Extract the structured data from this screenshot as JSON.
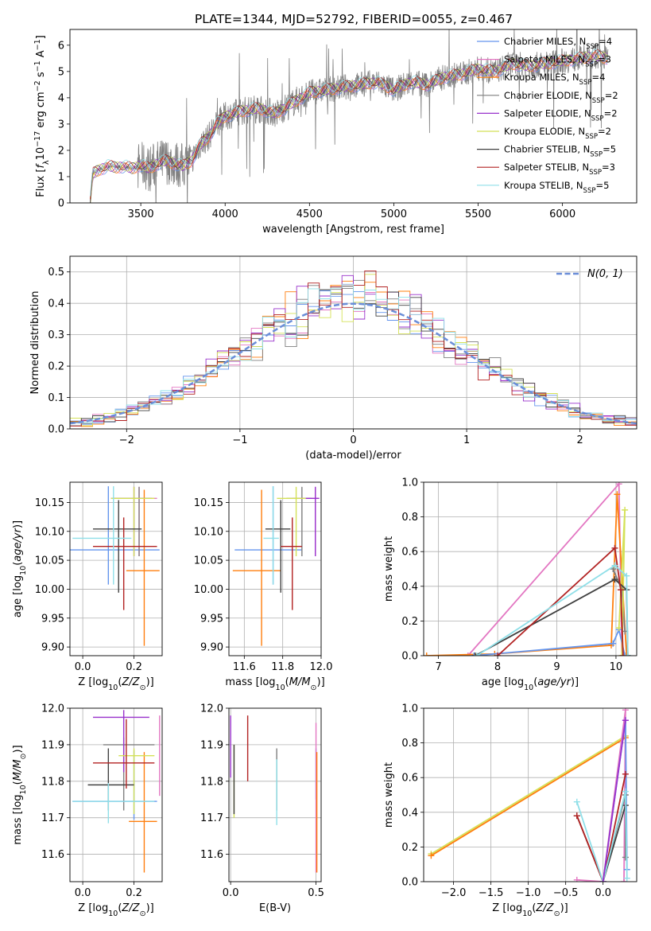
{
  "figure": {
    "title": "PLATE=1344, MJD=52792, FIBERID=0055, z=0.467"
  },
  "legend_labels": [
    {
      "text": "Chabrier MILES, N",
      "sub": "SSP",
      "tail": "=4",
      "color": "#6495ed"
    },
    {
      "text": "Salpeter MILES, N",
      "sub": "SSP",
      "tail": "=3",
      "color": "#e377c2"
    },
    {
      "text": "Kroupa MILES, N",
      "sub": "SSP",
      "tail": "=4",
      "color": "#ff7f0e"
    },
    {
      "text": "Chabrier ELODIE, N",
      "sub": "SSP",
      "tail": "=2",
      "color": "#7f7f7f"
    },
    {
      "text": "Salpeter ELODIE, N",
      "sub": "SSP",
      "tail": "=2",
      "color": "#9932cc"
    },
    {
      "text": "Kroupa ELODIE, N",
      "sub": "SSP",
      "tail": "=2",
      "color": "#d4e157"
    },
    {
      "text": "Chabrier STELIB, N",
      "sub": "SSP",
      "tail": "=5",
      "color": "#404040"
    },
    {
      "text": "Salpeter STELIB, N",
      "sub": "SSP",
      "tail": "=3",
      "color": "#b22222"
    },
    {
      "text": "Kroupa STELIB, N",
      "sub": "SSP",
      "tail": "=5",
      "color": "#8fdfe8"
    }
  ],
  "chart_data": [
    {
      "id": "spectrum",
      "type": "line",
      "xlabel": "wavelength [Angstrom, rest frame]",
      "ylabel": "Flux [fλ10⁻¹⁷ erg cm⁻² s⁻¹ A⁻¹]",
      "xlim": [
        3080,
        6440
      ],
      "ylim": [
        0,
        6.6
      ],
      "xticks": [
        3500,
        4000,
        4500,
        5000,
        5500,
        6000
      ],
      "yticks": [
        0,
        1,
        2,
        3,
        4,
        5,
        6
      ],
      "grid": false,
      "legend": "top-right",
      "data_color": "#808080",
      "model_color": "#ff7f0e",
      "continuum_points": [
        [
          3200,
          0
        ],
        [
          3215,
          1.1
        ],
        [
          3250,
          1.25
        ],
        [
          3300,
          1.4
        ],
        [
          3350,
          1.35
        ],
        [
          3400,
          1.4
        ],
        [
          3450,
          1.3
        ],
        [
          3500,
          1.45
        ],
        [
          3550,
          1.3
        ],
        [
          3600,
          1.5
        ],
        [
          3650,
          1.6
        ],
        [
          3700,
          1.5
        ],
        [
          3750,
          1.4
        ],
        [
          3800,
          1.6
        ],
        [
          3850,
          2.2
        ],
        [
          3900,
          2.5
        ],
        [
          3950,
          3.0
        ],
        [
          4000,
          3.3
        ],
        [
          4100,
          3.5
        ],
        [
          4200,
          3.6
        ],
        [
          4300,
          3.4
        ],
        [
          4400,
          3.8
        ],
        [
          4500,
          4.2
        ],
        [
          4600,
          4.3
        ],
        [
          4700,
          4.4
        ],
        [
          4800,
          4.5
        ],
        [
          4900,
          4.6
        ],
        [
          5000,
          4.3
        ],
        [
          5100,
          4.6
        ],
        [
          5200,
          4.5
        ],
        [
          5300,
          4.8
        ],
        [
          5400,
          4.9
        ],
        [
          5500,
          5.1
        ],
        [
          5600,
          5.0
        ],
        [
          5700,
          5.3
        ],
        [
          5800,
          5.2
        ],
        [
          5900,
          5.3
        ],
        [
          6000,
          5.4
        ],
        [
          6100,
          5.5
        ],
        [
          6200,
          5.6
        ],
        [
          6270,
          5.5
        ]
      ]
    },
    {
      "id": "residuals",
      "type": "line",
      "xlabel": "(data-model)/error",
      "ylabel": "Normed distribution",
      "xlim": [
        -2.5,
        2.5
      ],
      "ylim": [
        0,
        0.55
      ],
      "xticks": [
        -2,
        -1,
        0,
        1,
        2
      ],
      "yticks": [
        0.0,
        0.1,
        0.2,
        0.3,
        0.4,
        0.5
      ],
      "grid": true,
      "legend": "top-right",
      "gaussian_label": "N(0, 1)",
      "gaussian_color": "#6a8ed8"
    },
    {
      "id": "age-vs-Z",
      "type": "scatter",
      "xlabel": "Z [log10(Z/Z⊙)]",
      "ylabel": "age  [log10(age/yr)]",
      "xlim": [
        -0.05,
        0.31
      ],
      "ylim": [
        9.885,
        10.185
      ],
      "xticks": [
        0.0,
        0.2
      ],
      "yticks": [
        9.9,
        9.95,
        10.0,
        10.05,
        10.1,
        10.15
      ],
      "points": [
        {
          "x": 0.1,
          "y": 10.068,
          "xerr": [
            0.165,
            0.2
          ],
          "yerr": [
            0.06,
            0.11
          ],
          "color": "#6495ed"
        },
        {
          "x": 0.22,
          "y": 10.157,
          "xerr": [
            0.07,
            0.07
          ],
          "yerr": [
            0.1,
            0.02
          ],
          "color": "#e377c2"
        },
        {
          "x": 0.24,
          "y": 10.032,
          "xerr": [
            0.07,
            0.06
          ],
          "yerr": [
            0.13,
            0.14
          ],
          "color": "#ff7f0e"
        },
        {
          "x": 0.22,
          "y": 10.157,
          "xerr": [
            0.1,
            0.05
          ],
          "yerr": [
            0.1,
            0.02
          ],
          "color": "#7f7f7f"
        },
        {
          "x": 0.2,
          "y": 10.157,
          "xerr": [
            0.09,
            0.07
          ],
          "yerr": [
            0.1,
            0.02
          ],
          "color": "#9932cc"
        },
        {
          "x": 0.2,
          "y": 10.157,
          "xerr": [
            0.09,
            0.08
          ],
          "yerr": [
            0.1,
            0.02
          ],
          "color": "#d4e157"
        },
        {
          "x": 0.14,
          "y": 10.104,
          "xerr": [
            0.1,
            0.09
          ],
          "yerr": [
            0.11,
            0.05
          ],
          "color": "#404040"
        },
        {
          "x": 0.16,
          "y": 10.074,
          "xerr": [
            0.12,
            0.13
          ],
          "yerr": [
            0.11,
            0.05
          ],
          "color": "#b22222"
        },
        {
          "x": 0.12,
          "y": 10.088,
          "xerr": [
            0.16,
            0.07
          ],
          "yerr": [
            0.08,
            0.09
          ],
          "color": "#8fdfe8"
        }
      ]
    },
    {
      "id": "age-vs-mass",
      "type": "scatter",
      "xlabel": "mass [log10(M/M⊙)]",
      "ylabel": "",
      "xlim": [
        11.52,
        12.0
      ],
      "ylim": [
        9.885,
        10.185
      ],
      "xticks": [
        11.6,
        11.8,
        12.0
      ],
      "yticks": [
        9.9,
        9.95,
        10.0,
        10.05,
        10.1,
        10.15
      ],
      "points": [
        {
          "x": 11.75,
          "y": 10.068,
          "xerr": [
            0.2,
            0.15
          ],
          "yerr": [
            0.06,
            0.11
          ],
          "color": "#6495ed"
        },
        {
          "x": 11.97,
          "y": 10.157,
          "xerr": [
            0.05,
            0.02
          ],
          "yerr": [
            0.1,
            0.02
          ],
          "color": "#e377c2"
        },
        {
          "x": 11.69,
          "y": 10.032,
          "xerr": [
            0.15,
            0.1
          ],
          "yerr": [
            0.13,
            0.14
          ],
          "color": "#ff7f0e"
        },
        {
          "x": 11.9,
          "y": 10.157,
          "xerr": [
            0.08,
            0.05
          ],
          "yerr": [
            0.1,
            0.02
          ],
          "color": "#7f7f7f"
        },
        {
          "x": 11.97,
          "y": 10.157,
          "xerr": [
            0.12,
            0.02
          ],
          "yerr": [
            0.1,
            0.02
          ],
          "color": "#9932cc"
        },
        {
          "x": 11.87,
          "y": 10.157,
          "xerr": [
            0.1,
            0.05
          ],
          "yerr": [
            0.1,
            0.02
          ],
          "color": "#d4e157"
        },
        {
          "x": 11.79,
          "y": 10.104,
          "xerr": [
            0.08,
            0.05
          ],
          "yerr": [
            0.11,
            0.05
          ],
          "color": "#404040"
        },
        {
          "x": 11.85,
          "y": 10.074,
          "xerr": [
            0.06,
            0.05
          ],
          "yerr": [
            0.11,
            0.05
          ],
          "color": "#b22222"
        },
        {
          "x": 11.75,
          "y": 10.088,
          "xerr": [
            0.05,
            0.03
          ],
          "yerr": [
            0.08,
            0.09
          ],
          "color": "#8fdfe8"
        }
      ]
    },
    {
      "id": "mass-weight-vs-age",
      "type": "line",
      "xlabel": "age  [log10(age/yr)]",
      "ylabel": "mass weight",
      "xlim": [
        6.75,
        10.35
      ],
      "ylim": [
        0,
        1
      ],
      "xticks": [
        7,
        8,
        9,
        10
      ],
      "yticks": [
        0.0,
        0.2,
        0.4,
        0.6,
        0.8,
        1.0
      ],
      "grid": true,
      "series": [
        {
          "color": "#e377c2",
          "x": [
            7.5,
            10.05,
            10.1
          ],
          "y": [
            0.0,
            0.99,
            0.0
          ]
        },
        {
          "color": "#ff7f0e",
          "x": [
            6.8,
            7.95,
            9.92,
            10.02,
            10.18
          ],
          "y": [
            0.0,
            0.01,
            0.06,
            0.93,
            0.0
          ]
        },
        {
          "color": "#6495ed",
          "x": [
            7.6,
            9.95,
            10.05,
            10.15
          ],
          "y": [
            0.0,
            0.07,
            0.15,
            0.0
          ]
        },
        {
          "color": "#7f7f7f",
          "x": [
            9.95,
            10.1,
            10.15
          ],
          "y": [
            0.5,
            0.38,
            0.14
          ]
        },
        {
          "color": "#d4e157",
          "x": [
            10.05,
            10.15,
            10.1
          ],
          "y": [
            0.16,
            0.84,
            0.0
          ]
        },
        {
          "color": "#404040",
          "x": [
            7.62,
            9.98,
            10.18,
            10.2
          ],
          "y": [
            0.0,
            0.44,
            0.38,
            0.0
          ]
        },
        {
          "color": "#b22222",
          "x": [
            8.0,
            9.98,
            10.08,
            10.12
          ],
          "y": [
            0.0,
            0.62,
            0.38,
            0.0
          ]
        },
        {
          "color": "#8fdfe8",
          "x": [
            7.65,
            9.98,
            10.18,
            10.2
          ],
          "y": [
            0.0,
            0.52,
            0.46,
            0.0
          ]
        }
      ]
    },
    {
      "id": "mass-vs-Z",
      "type": "scatter",
      "xlabel": "Z [log10(Z/Z⊙)]",
      "ylabel": "mass [log10(M/M⊙)]",
      "xlim": [
        -0.05,
        0.31
      ],
      "ylim": [
        11.525,
        12.0
      ],
      "xticks": [
        0.0,
        0.2
      ],
      "yticks": [
        11.6,
        11.7,
        11.8,
        11.9,
        12.0
      ],
      "points": [
        {
          "x": 0.2,
          "y": 11.745,
          "xerr": [
            0.24,
            0.09
          ],
          "yerr": [
            0.05,
            0.14
          ],
          "color": "#6495ed"
        },
        {
          "x": 0.3,
          "y": 11.96,
          "xerr": [
            0.0,
            0.0
          ],
          "yerr": [
            0.2,
            0.02
          ],
          "color": "#e377c2"
        },
        {
          "x": 0.24,
          "y": 11.69,
          "xerr": [
            0.06,
            0.05
          ],
          "yerr": [
            0.14,
            0.19
          ],
          "color": "#ff7f0e"
        },
        {
          "x": 0.16,
          "y": 11.9,
          "xerr": [
            0.08,
            0.12
          ],
          "yerr": [
            0.18,
            0.02
          ],
          "color": "#7f7f7f"
        },
        {
          "x": 0.16,
          "y": 11.975,
          "xerr": [
            0.12,
            0.1
          ],
          "yerr": [
            0.15,
            0.02
          ],
          "color": "#9932cc"
        },
        {
          "x": 0.2,
          "y": 11.87,
          "xerr": [
            0.06,
            0.08
          ],
          "yerr": [
            0.16,
            0.02
          ],
          "color": "#d4e157"
        },
        {
          "x": 0.1,
          "y": 11.79,
          "xerr": [
            0.08,
            0.1
          ],
          "yerr": [
            0.07,
            0.1
          ],
          "color": "#404040"
        },
        {
          "x": 0.17,
          "y": 11.85,
          "xerr": [
            0.13,
            0.11
          ],
          "yerr": [
            0.07,
            0.12
          ],
          "color": "#b22222"
        },
        {
          "x": 0.1,
          "y": 11.745,
          "xerr": [
            0.14,
            0.18
          ],
          "yerr": [
            0.06,
            0.05
          ],
          "color": "#8fdfe8"
        }
      ]
    },
    {
      "id": "mass-vs-EBV",
      "type": "scatter",
      "xlabel": "E(B-V)",
      "ylabel": "",
      "xlim": [
        -0.01,
        0.53
      ],
      "ylim": [
        11.525,
        12.0
      ],
      "xticks": [
        0.0,
        0.5
      ],
      "yticks": [
        11.6,
        11.7,
        11.8,
        11.9,
        12.0
      ],
      "points": [
        {
          "x": 0.5,
          "y": 11.85,
          "xerr": [
            0.0,
            0.0
          ],
          "yerr": [
            0.1,
            0.04
          ],
          "color": "#6495ed"
        },
        {
          "x": 0.5,
          "y": 11.8,
          "xerr": [
            0.0,
            0.0
          ],
          "yerr": [
            0.25,
            0.16
          ],
          "color": "#e377c2"
        },
        {
          "x": 0.505,
          "y": 11.75,
          "xerr": [
            0.0,
            0.0
          ],
          "yerr": [
            0.2,
            0.13
          ],
          "color": "#ff7f0e"
        },
        {
          "x": 0.27,
          "y": 11.79,
          "xerr": [
            0.0,
            0.0
          ],
          "yerr": [
            0.07,
            0.1
          ],
          "color": "#7f7f7f"
        },
        {
          "x": 0.0,
          "y": 11.9,
          "xerr": [
            0.0,
            0.0
          ],
          "yerr": [
            0.09,
            0.08
          ],
          "color": "#9932cc"
        },
        {
          "x": 0.02,
          "y": 11.8,
          "xerr": [
            0.0,
            0.0
          ],
          "yerr": [
            0.1,
            0.1
          ],
          "color": "#d4e157"
        },
        {
          "x": 0.02,
          "y": 11.8,
          "xerr": [
            0.0,
            0.0
          ],
          "yerr": [
            0.09,
            0.1
          ],
          "color": "#404040"
        },
        {
          "x": 0.1,
          "y": 11.9,
          "xerr": [
            0.0,
            0.0
          ],
          "yerr": [
            0.1,
            0.08
          ],
          "color": "#b22222"
        },
        {
          "x": 0.27,
          "y": 11.75,
          "xerr": [
            0.0,
            0.0
          ],
          "yerr": [
            0.07,
            0.11
          ],
          "color": "#8fdfe8"
        }
      ]
    },
    {
      "id": "mass-weight-vs-Z",
      "type": "line",
      "xlabel": "Z [log10(Z/Z⊙)]",
      "ylabel": "mass weight",
      "xlim": [
        -2.4,
        0.45
      ],
      "ylim": [
        0,
        1
      ],
      "xticks": [
        -2.0,
        -1.5,
        -1.0,
        -0.5,
        0.0
      ],
      "yticks": [
        0.0,
        0.2,
        0.4,
        0.6,
        0.8,
        1.0
      ],
      "grid": true,
      "series": [
        {
          "color": "#d4e157",
          "x": [
            -2.3,
            0.3
          ],
          "y": [
            0.16,
            0.84
          ]
        },
        {
          "color": "#ff7f0e",
          "x": [
            -2.3,
            0.3
          ],
          "y": [
            0.15,
            0.83
          ]
        },
        {
          "color": "#e377c2",
          "x": [
            -0.35,
            0.0,
            0.3,
            0.28
          ],
          "y": [
            0.01,
            0.0,
            0.99,
            0.0
          ]
        },
        {
          "color": "#6495ed",
          "x": [
            0.0,
            0.3,
            0.32
          ],
          "y": [
            0.0,
            0.93,
            0.07
          ]
        },
        {
          "color": "#7f7f7f",
          "x": [
            0.0,
            0.3,
            0.3
          ],
          "y": [
            0.0,
            0.5,
            0.14
          ]
        },
        {
          "color": "#404040",
          "x": [
            -0.35,
            0.0,
            0.3
          ],
          "y": [
            0.38,
            0.0,
            0.44
          ]
        },
        {
          "color": "#b22222",
          "x": [
            -0.35,
            0.0,
            0.3
          ],
          "y": [
            0.38,
            0.0,
            0.62
          ]
        },
        {
          "color": "#8fdfe8",
          "x": [
            -0.35,
            0.0,
            0.3,
            0.32
          ],
          "y": [
            0.46,
            0.0,
            0.52,
            0.02
          ]
        },
        {
          "color": "#9932cc",
          "x": [
            0.0,
            0.3
          ],
          "y": [
            0.0,
            0.93
          ]
        }
      ]
    }
  ]
}
